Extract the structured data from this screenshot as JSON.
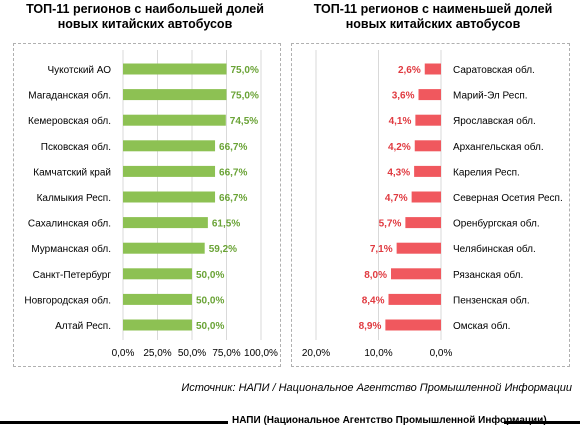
{
  "chart_data": [
    {
      "type": "bar",
      "orientation": "horizontal",
      "title": "ТОП-11 регионов с наибольшей долей новых китайских автобусов",
      "title_lines": [
        "ТОП-11 регионов с наибольшей долей",
        "новых китайских автобусов"
      ],
      "categories": [
        "Чукотский АО",
        "Магаданская обл.",
        "Кемеровская обл.",
        "Псковская обл.",
        "Камчатский край",
        "Калмыкия Респ.",
        "Сахалинская обл.",
        "Мурманская обл.",
        "Санкт-Петербург",
        "Новгородская обл.",
        "Алтай Респ."
      ],
      "values": [
        75.0,
        75.0,
        74.5,
        66.7,
        66.7,
        66.7,
        61.5,
        59.2,
        50.0,
        50.0,
        50.0
      ],
      "value_labels": [
        "75,0%",
        "75,0%",
        "74,5%",
        "66,7%",
        "66,7%",
        "66,7%",
        "61,5%",
        "59,2%",
        "50,0%",
        "50,0%",
        "50,0%"
      ],
      "xlim": [
        0,
        100
      ],
      "x_ticks": [
        0,
        25,
        50,
        75,
        100
      ],
      "x_tick_labels": [
        "0,0%",
        "25,0%",
        "50,0%",
        "75,0%",
        "100,0%"
      ],
      "grid": true,
      "color": "#8dc153",
      "label_color": "#6aa336"
    },
    {
      "type": "bar",
      "orientation": "horizontal",
      "direction": "reversed",
      "title": "ТОП-11 регионов с наименьшей долей новых китайских автобусов",
      "title_lines": [
        "ТОП-11 регионов с наименьшей долей",
        "новых китайских автобусов"
      ],
      "categories": [
        "Саратовская обл.",
        "Марий-Эл Респ.",
        "Ярославская обл.",
        "Архангельская обл.",
        "Карелия Респ.",
        "Северная Осетия Респ.",
        "Оренбургская обл.",
        "Челябинская обл.",
        "Рязанская обл.",
        "Пензенская обл.",
        "Омская обл."
      ],
      "values": [
        2.6,
        3.6,
        4.1,
        4.2,
        4.3,
        4.7,
        5.7,
        7.1,
        8.0,
        8.4,
        8.9
      ],
      "value_labels": [
        "2,6%",
        "3,6%",
        "4,1%",
        "4,2%",
        "4,3%",
        "4,7%",
        "5,7%",
        "7,1%",
        "8,0%",
        "8,4%",
        "8,9%"
      ],
      "xlim": [
        20,
        0
      ],
      "x_ticks": [
        20,
        10,
        0
      ],
      "x_tick_labels": [
        "20,0%",
        "10,0%",
        "0,0%"
      ],
      "grid": true,
      "color": "#f0585e",
      "label_color": "#e03a40"
    }
  ],
  "source": "Источник: НАПИ / Национальное Агентство Промышленной Информации",
  "footer": "НАПИ (Национальное Агентство Промышленной Информации)"
}
